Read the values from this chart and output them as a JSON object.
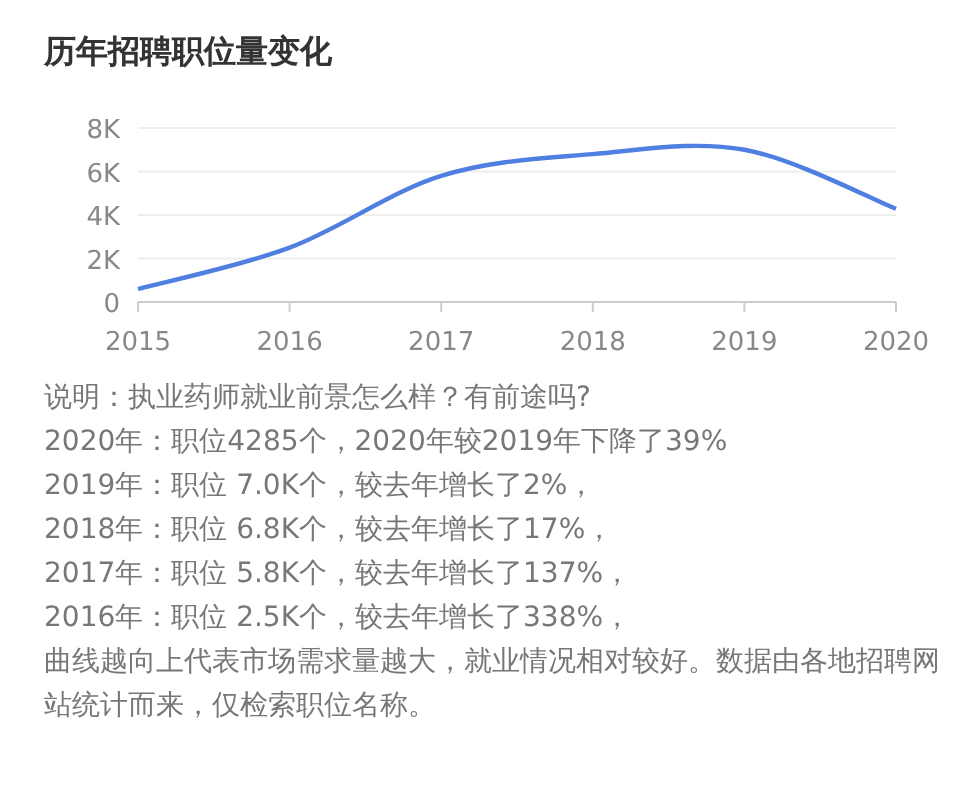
{
  "chart_data": {
    "type": "line",
    "title": "历年招聘职位量变化",
    "x": [
      2015,
      2016,
      2017,
      2018,
      2019,
      2020
    ],
    "series": [
      {
        "color": "#4f7fe0",
        "values": [
          600,
          2500,
          5800,
          6800,
          7000,
          4285
        ]
      }
    ],
    "xlim": [
      2015,
      2020
    ],
    "xticks": [
      2015,
      2016,
      2017,
      2018,
      2019,
      2020
    ],
    "ylim": [
      0,
      8000
    ],
    "yticks": [
      0,
      {
        "value": 2000,
        "label": "2K"
      },
      {
        "value": 4000,
        "label": "4K"
      },
      {
        "value": 6000,
        "label": "6K"
      },
      {
        "value": 8000,
        "label": "8K"
      }
    ],
    "grid": "y",
    "marker": "none",
    "line_style": "solid",
    "annotations": [
      "说明：执业药师就业前景怎么样？有前途吗?",
      "2020年：职位4285个，2020年较2019年下降了39%",
      "2019年：职位 7.0K个，较去年增长了2%，",
      "2018年：职位 6.8K个，较去年增长了17%，",
      "2017年：职位 5.8K个，较去年增长了137%，",
      "2016年：职位 2.5K个，较去年增长了338%，",
      "曲线越向上代表市场需求量越大，就业情况相对较好。数据由各地招聘网站统计而来，仅检索职位名称。"
    ]
  }
}
